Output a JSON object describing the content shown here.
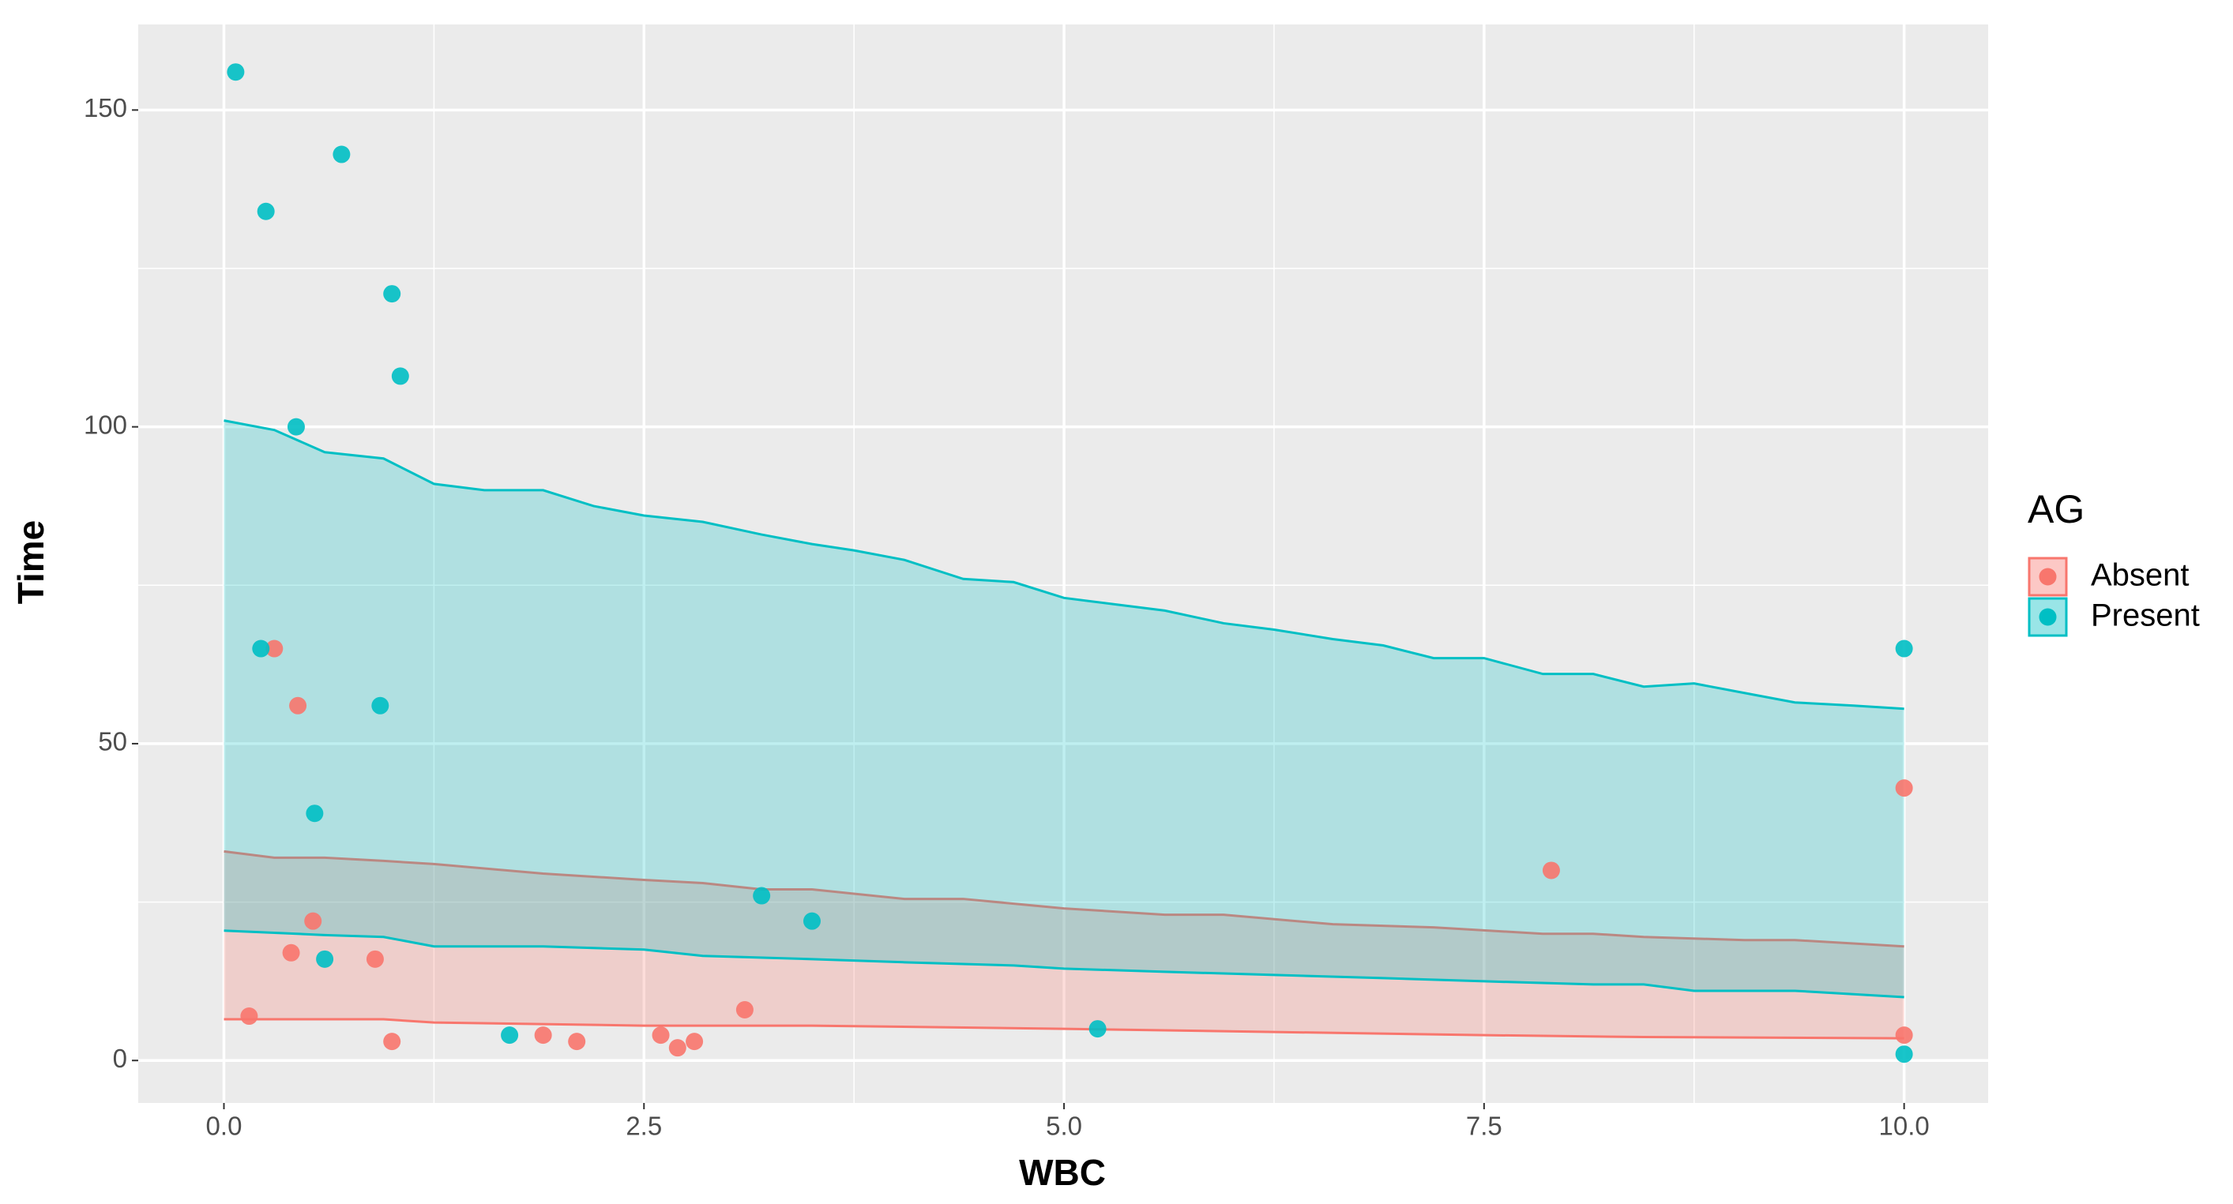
{
  "chart_data": {
    "type": "scatter-ribbon",
    "x_label": "WBC",
    "y_label": "Time",
    "legend_title": "AG",
    "legend_position": "right",
    "grid": true,
    "xlim": [
      -0.51,
      10.5
    ],
    "ylim": [
      -6.7,
      163.5
    ],
    "xticks": [
      {
        "value": 0,
        "label": "0.0"
      },
      2.5,
      {
        "value": 5,
        "label": "5.0"
      },
      7.5,
      {
        "value": 10,
        "label": "10.0"
      }
    ],
    "yticks": [
      0,
      50,
      100,
      150
    ],
    "series": [
      {
        "name": "Absent",
        "color": "#F8766D",
        "x": [
          0.3,
          0.44,
          0.53,
          0.4,
          0.9,
          0.15,
          1.0,
          1.9,
          2.1,
          2.6,
          2.7,
          2.8,
          3.1,
          7.9,
          10,
          10
        ],
        "values": [
          65,
          56,
          22,
          17,
          16,
          7,
          3,
          4,
          3,
          4,
          2,
          3,
          8,
          30,
          43,
          4
        ],
        "upper": {
          "x": [
            0,
            0.3,
            0.6,
            0.95,
            1.25,
            1.9,
            2.5,
            2.85,
            3.2,
            3.5,
            4.05,
            4.4,
            5.0,
            5.6,
            5.95,
            6.6,
            7.2,
            7.85,
            8.15,
            8.45,
            9.05,
            9.35,
            10
          ],
          "values": [
            33,
            32,
            32,
            31.5,
            31,
            29.5,
            28.5,
            28,
            27,
            27,
            25.5,
            25.5,
            24,
            23,
            23,
            21.5,
            21,
            20,
            20,
            19.5,
            19,
            19,
            18
          ]
        },
        "lower": {
          "x": [
            0,
            0.95,
            1.25,
            2.5,
            3.5,
            5.0,
            6.25,
            7.5,
            8.45,
            10
          ],
          "values": [
            6.5,
            6.5,
            6,
            5.5,
            5.5,
            5,
            4.5,
            4,
            3.7,
            3.5
          ]
        }
      },
      {
        "name": "Present",
        "color": "#00BFC4",
        "x": [
          0.07,
          0.7,
          0.25,
          1.0,
          1.05,
          0.43,
          0.22,
          0.93,
          0.54,
          0.6,
          1.7,
          3.2,
          3.5,
          5.2,
          10,
          10
        ],
        "values": [
          156,
          143,
          134,
          121,
          108,
          100,
          65,
          56,
          39,
          16,
          4,
          26,
          22,
          5,
          65,
          1
        ],
        "upper": {
          "x": [
            0,
            0.3,
            0.6,
            0.95,
            1.25,
            1.55,
            1.9,
            2.2,
            2.5,
            2.85,
            3.2,
            3.5,
            3.75,
            4.05,
            4.4,
            4.7,
            5.0,
            5.3,
            5.6,
            5.95,
            6.25,
            6.6,
            6.9,
            7.2,
            7.5,
            7.85,
            8.15,
            8.45,
            8.75,
            9.05,
            9.35,
            9.7,
            10
          ],
          "values": [
            101,
            99.5,
            96,
            95,
            91,
            90,
            90,
            87.5,
            86,
            85,
            83,
            81.5,
            80.5,
            79,
            76,
            75.5,
            73,
            72,
            71,
            69,
            68,
            66.5,
            65.5,
            63.5,
            63.5,
            61,
            61,
            59,
            59.5,
            58,
            56.5,
            56,
            55.5
          ]
        },
        "lower": {
          "x": [
            0,
            0.6,
            0.95,
            1.25,
            1.9,
            2.5,
            2.85,
            3.5,
            4.05,
            4.7,
            5.0,
            5.6,
            6.25,
            6.9,
            7.5,
            8.15,
            8.45,
            8.75,
            9.35,
            10
          ],
          "values": [
            20.5,
            19.8,
            19.5,
            18,
            18,
            17.5,
            16.5,
            16,
            15.5,
            15,
            14.5,
            14,
            13.5,
            13,
            12.5,
            12,
            12,
            11,
            11,
            10
          ]
        }
      }
    ]
  }
}
